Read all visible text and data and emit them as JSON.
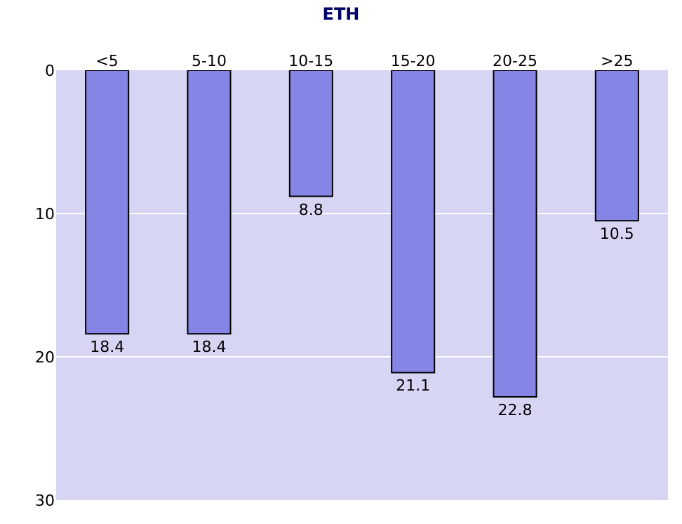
{
  "chart_data": {
    "type": "bar",
    "title": "ETH",
    "categories": [
      "<5",
      "5-10",
      "10-15",
      "15-20",
      "20-25",
      ">25"
    ],
    "values": [
      18.4,
      18.4,
      8.8,
      21.1,
      22.8,
      10.5
    ],
    "color": "#8585e6",
    "ylim": [
      30,
      0
    ],
    "yticks": [
      0,
      10,
      20,
      30
    ],
    "grid": "y",
    "data_labels": true
  }
}
